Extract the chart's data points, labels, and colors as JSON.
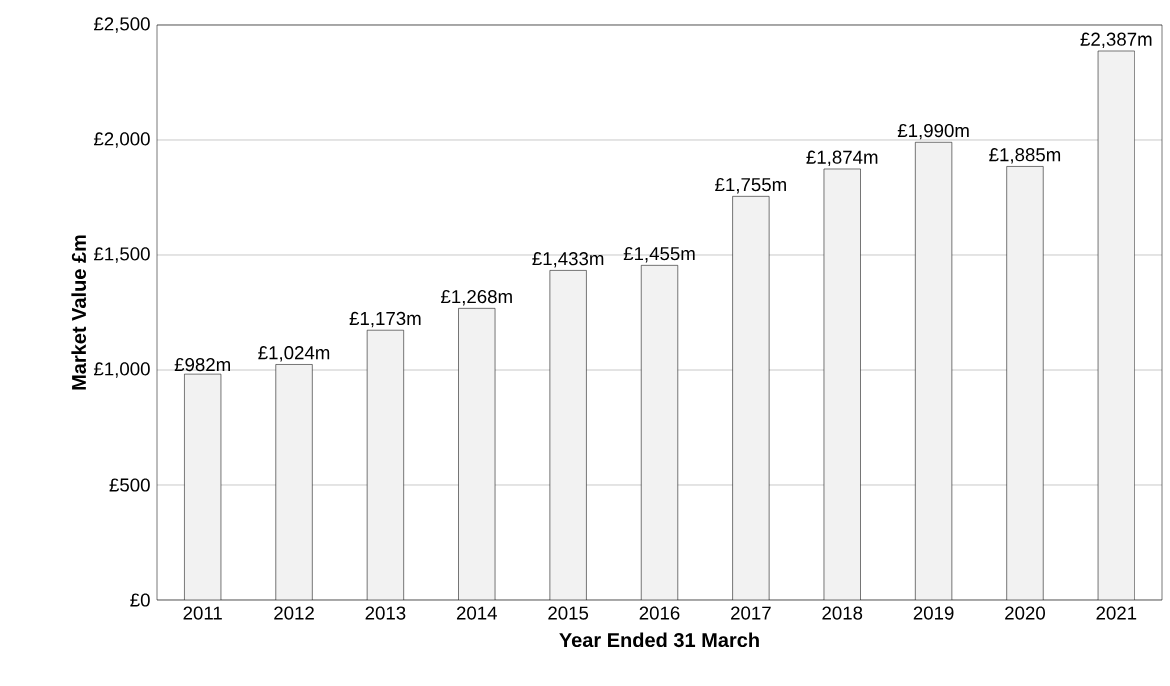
{
  "chart_data": {
    "type": "bar",
    "xlabel": "Year Ended 31 March",
    "ylabel": "Market Value £m",
    "categories": [
      "2011",
      "2012",
      "2013",
      "2014",
      "2015",
      "2016",
      "2017",
      "2018",
      "2019",
      "2020",
      "2021"
    ],
    "values": [
      982,
      1024,
      1173,
      1268,
      1433,
      1455,
      1755,
      1874,
      1990,
      1885,
      2387
    ],
    "value_labels": [
      "£982m",
      "£1,024m",
      "£1,173m",
      "£1,268m",
      "£1,433m",
      "£1,455m",
      "£1,755m",
      "£1,874m",
      "£1,990m",
      "£1,885m",
      "£2,387m"
    ],
    "color": "#f2f2f2",
    "ylim": [
      0,
      2500
    ],
    "yticks": [
      {
        "value": 0,
        "label": "£0"
      },
      {
        "value": 500,
        "label": "£500"
      },
      {
        "value": 1000,
        "label": "£1,000"
      },
      {
        "value": 1500,
        "label": "£1,500"
      },
      {
        "value": 2000,
        "label": "£2,000"
      },
      {
        "value": 2500,
        "label": "£2,500"
      }
    ],
    "grid": "y"
  }
}
